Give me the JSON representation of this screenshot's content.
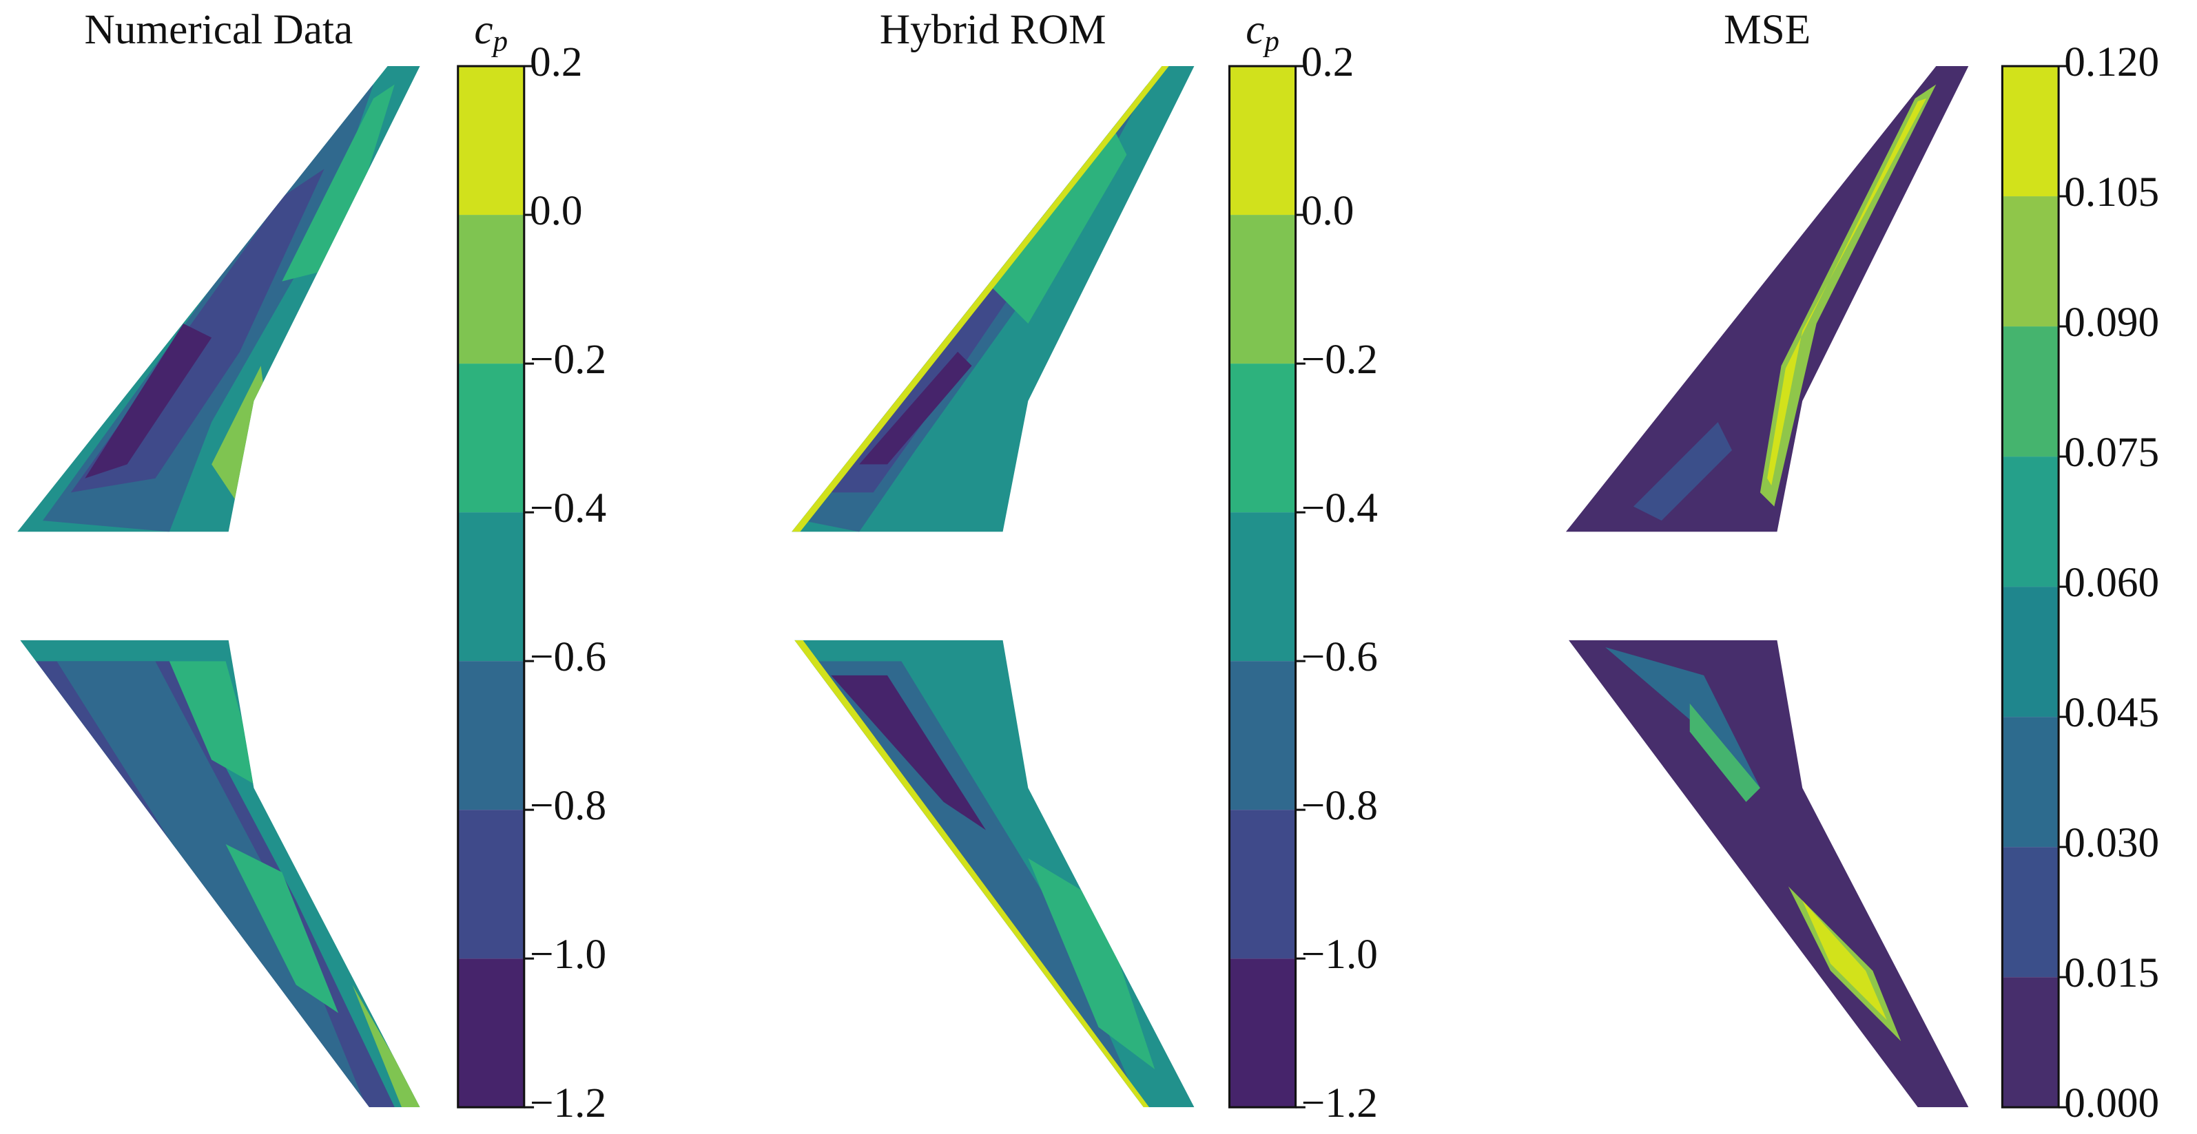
{
  "panels": [
    {
      "title": "Numerical Data",
      "colorbar_label": {
        "base": "c",
        "sub": "p"
      },
      "ticks": [
        {
          "value": -1.2,
          "label": "−1.2"
        },
        {
          "value": -1.0,
          "label": "−1.0"
        },
        {
          "value": -0.8,
          "label": "−0.8"
        },
        {
          "value": -0.6,
          "label": "−0.6"
        },
        {
          "value": -0.4,
          "label": "−0.4"
        },
        {
          "value": -0.2,
          "label": "−0.2"
        },
        {
          "value": 0,
          "label": "0.0"
        },
        0.2
      ],
      "colors": [
        "#46246b",
        "#3f4a8a",
        "#30698e",
        "#21918c",
        "#2db27d",
        "#7fc451",
        "#d1e11c"
      ]
    },
    {
      "title": "Hybrid ROM",
      "colorbar_label": {
        "base": "c",
        "sub": "p"
      },
      "ticks": [
        {
          "value": -1.2,
          "label": "−1.2"
        },
        {
          "value": -1.0,
          "label": "−1.0"
        },
        {
          "value": -0.8,
          "label": "−0.8"
        },
        {
          "value": -0.6,
          "label": "−0.6"
        },
        {
          "value": -0.4,
          "label": "−0.4"
        },
        {
          "value": -0.2,
          "label": "−0.2"
        },
        {
          "value": 0,
          "label": "0.0"
        },
        0.2
      ],
      "colors": [
        "#46246b",
        "#3f4a8a",
        "#30698e",
        "#21918c",
        "#2db27d",
        "#7fc451",
        "#d1e11c"
      ]
    },
    {
      "title": "MSE",
      "ticks": [
        {
          "value": 0,
          "label": "0.000"
        },
        0.015,
        {
          "value": 0.03,
          "label": "0.030"
        },
        0.045,
        {
          "value": 0.06,
          "label": "0.060"
        },
        0.075,
        {
          "value": 0.09,
          "label": "0.090"
        },
        0.105,
        {
          "value": 0.12,
          "label": "0.120"
        }
      ],
      "colors": [
        "#472e6c",
        "#3b4f8a",
        "#2d6b8e",
        "#1f868d",
        "#25a08a",
        "#45b46e",
        "#8fc64a",
        "#d2e21b"
      ]
    }
  ]
}
